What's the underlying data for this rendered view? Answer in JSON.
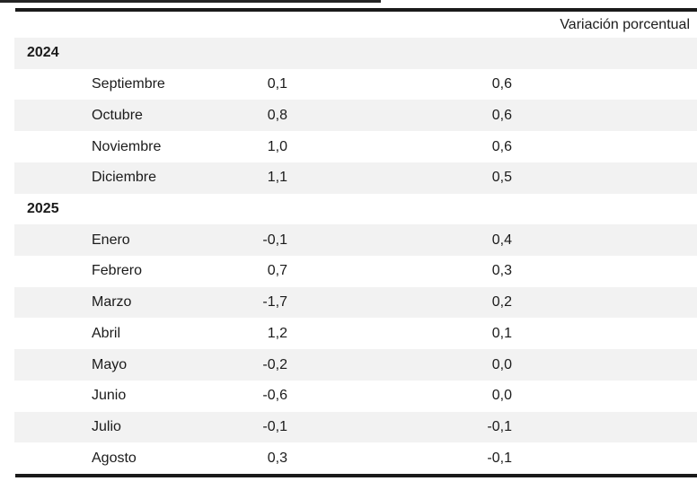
{
  "table": {
    "header": "Variación porcentual",
    "rows": [
      {
        "type": "year",
        "label": "2024"
      },
      {
        "type": "month",
        "label": "Septiembre",
        "value1": "0,1",
        "value2": "0,6"
      },
      {
        "type": "month",
        "label": "Octubre",
        "value1": "0,8",
        "value2": "0,6"
      },
      {
        "type": "month",
        "label": "Noviembre",
        "value1": "1,0",
        "value2": "0,6"
      },
      {
        "type": "month",
        "label": "Diciembre",
        "value1": "1,1",
        "value2": "0,5"
      },
      {
        "type": "year",
        "label": "2025"
      },
      {
        "type": "month",
        "label": "Enero",
        "value1": "-0,1",
        "value2": "0,4"
      },
      {
        "type": "month",
        "label": "Febrero",
        "value1": "0,7",
        "value2": "0,3"
      },
      {
        "type": "month",
        "label": "Marzo",
        "value1": "-1,7",
        "value2": "0,2"
      },
      {
        "type": "month",
        "label": "Abril",
        "value1": "1,2",
        "value2": "0,1"
      },
      {
        "type": "month",
        "label": "Mayo",
        "value1": "-0,2",
        "value2": "0,0"
      },
      {
        "type": "month",
        "label": "Junio",
        "value1": "-0,6",
        "value2": "0,0"
      },
      {
        "type": "month",
        "label": "Julio",
        "value1": "-0,1",
        "value2": "-0,1"
      },
      {
        "type": "month",
        "label": "Agosto",
        "value1": "0,3",
        "value2": "-0,1"
      }
    ]
  },
  "colors": {
    "stripe": "#f2f2f2",
    "rule": "#1a1a1a",
    "text": "#1b1b1b",
    "background": "#ffffff"
  }
}
